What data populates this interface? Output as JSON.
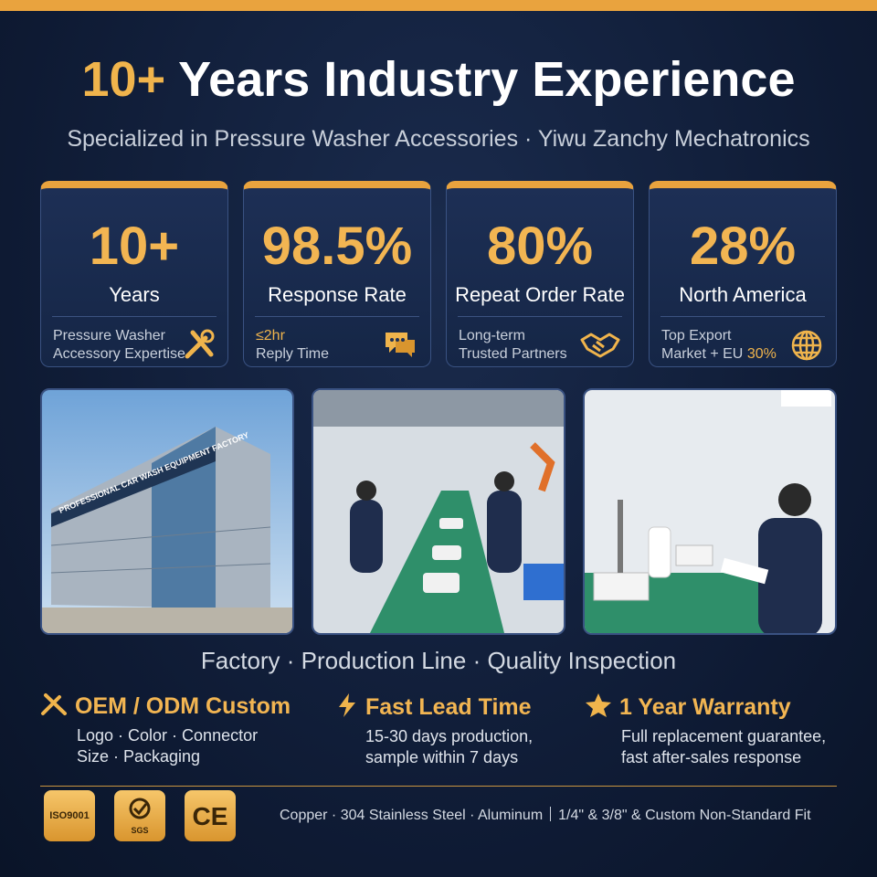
{
  "header": {
    "title_highlight": "10+",
    "title_rest": "Years Industry Experience",
    "subtitle": "Specialized in Pressure Washer Accessories · Yiwu Zanchy Mechatronics"
  },
  "stats": [
    {
      "value": "10+",
      "label": "Years",
      "note": [
        "Pressure Washer",
        "Accessory Expertise"
      ]
    },
    {
      "value": "98.5%",
      "label": "Response Rate",
      "note": [
        "≤2hr",
        "Reply Time"
      ]
    },
    {
      "value": "80%",
      "label": "Repeat Order Rate",
      "note": [
        "Long-term",
        "Trusted Partners"
      ]
    },
    {
      "value": "28%",
      "label": "North America",
      "note": [
        "Top Export",
        "Market + EU"
      ],
      "note_highlight": "30%"
    }
  ],
  "photos": {
    "factory_sign": "PROFESSIONAL CAR WASH EQUIPMENT FACTORY",
    "caption": "Factory · Production Line · Quality Inspection"
  },
  "features": [
    {
      "title": "OEM / ODM Custom",
      "lines": [
        "Logo · Color · Connector",
        "Size · Packaging"
      ]
    },
    {
      "title": "Fast Lead Time",
      "lines": [
        "15-30 days production,",
        "sample within 7 days"
      ]
    },
    {
      "title": "1 Year Warranty",
      "lines": [
        "Full replacement guarantee,",
        "fast after-sales response"
      ]
    }
  ],
  "footer": {
    "badges": [
      "ISO9001",
      "SGS",
      "CE"
    ],
    "materials": "Copper · 304 Stainless Steel · Aluminum",
    "fit": "1/4\" & 3/8\" & Custom Non-Standard Fit"
  }
}
